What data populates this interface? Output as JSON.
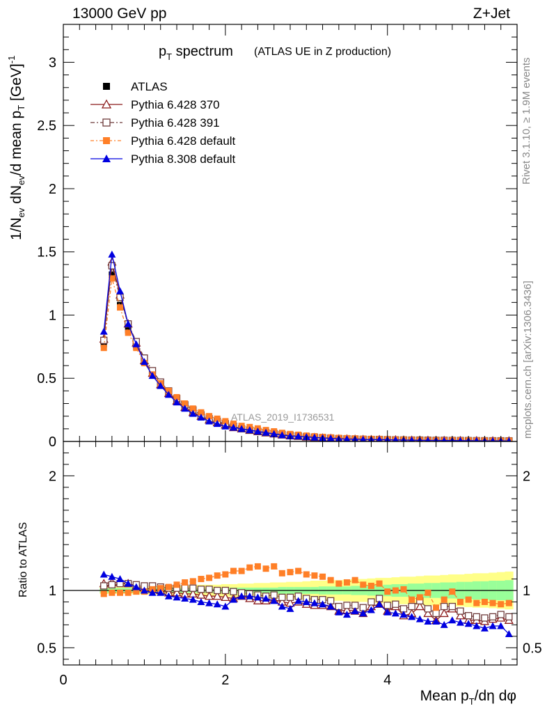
{
  "header": {
    "energy_label": "13000 GeV pp",
    "process_label": "Z+Jet",
    "title_main": "p",
    "title_sub": "T",
    "title_rest": " spectrum",
    "title_note": "(ATLAS UE in Z production)",
    "analysis_id": "ATLAS_2019_I1736531",
    "side_rivet": "Rivet 3.1.10, ≥ 1.9M events",
    "side_mcplots": "mcplots.cern.ch [arXiv:1306.3436]"
  },
  "axes": {
    "xlabel": "Mean p_T/dη dφ",
    "ylabel_main": "1/N_ev dN_ev/d mean p_T [GeV]^-1",
    "ylabel_ratio": "Ratio to ATLAS"
  },
  "colors": {
    "ATLAS": "#000000",
    "p370": "#8b1a1a",
    "p391": "#6e3b3b",
    "p6def": "#ff7f27",
    "p8def": "#0000e0",
    "band_inner": "#99ff99",
    "band_outer": "#ffff88"
  },
  "chart_data": [
    {
      "type": "scatter",
      "panel": "main",
      "xlim": [
        0,
        5.6
      ],
      "ylim": [
        0,
        3.3
      ],
      "x_ticks": [
        0,
        2,
        4
      ],
      "y_ticks": [
        0,
        0.5,
        1,
        1.5,
        2,
        2.5,
        3
      ],
      "x": [
        0.5,
        0.6,
        0.7,
        0.8,
        0.9,
        1.0,
        1.1,
        1.2,
        1.3,
        1.4,
        1.5,
        1.6,
        1.7,
        1.8,
        1.9,
        2.0,
        2.1,
        2.2,
        2.3,
        2.4,
        2.5,
        2.6,
        2.7,
        2.8,
        2.9,
        3.0,
        3.1,
        3.2,
        3.3,
        3.4,
        3.5,
        3.6,
        3.7,
        3.8,
        3.9,
        4.0,
        4.1,
        4.2,
        4.3,
        4.4,
        4.5,
        4.6,
        4.7,
        4.8,
        4.9,
        5.0,
        5.1,
        5.2,
        5.3,
        5.4,
        5.5
      ],
      "series": [
        {
          "name": "ATLAS",
          "marker": "square-filled",
          "values": [
            0.77,
            1.32,
            1.08,
            0.88,
            0.75,
            0.63,
            0.53,
            0.45,
            0.39,
            0.33,
            0.28,
            0.24,
            0.21,
            0.18,
            0.16,
            0.14,
            0.12,
            0.105,
            0.095,
            0.085,
            0.075,
            0.066,
            0.058,
            0.051,
            0.045,
            0.04,
            0.036,
            0.032,
            0.029,
            0.026,
            0.024,
            0.022,
            0.02,
            0.018,
            0.017,
            0.016,
            0.015,
            0.014,
            0.013,
            0.012,
            0.011,
            0.011,
            0.01,
            0.0095,
            0.009,
            0.0085,
            0.008,
            0.0075,
            0.007,
            0.0068,
            0.0065
          ]
        },
        {
          "name": "Pythia 6.428 370",
          "marker": "triangle-open",
          "values": [
            0.81,
            1.42,
            1.16,
            0.93,
            0.78,
            0.64,
            0.54,
            0.45,
            0.38,
            0.32,
            0.27,
            0.23,
            0.2,
            0.17,
            0.15,
            0.13,
            0.11,
            0.1,
            0.088,
            0.078,
            0.068,
            0.06,
            0.052,
            0.045,
            0.041,
            0.035,
            0.032,
            0.028,
            0.025,
            0.021,
            0.02,
            0.018,
            0.016,
            0.015,
            0.015,
            0.013,
            0.013,
            0.011,
            0.01,
            0.01,
            0.009,
            0.008,
            0.008,
            0.008,
            0.007,
            0.0063,
            0.006,
            0.0055,
            0.0053,
            0.0052,
            0.0048
          ]
        },
        {
          "name": "Pythia 6.428 391",
          "marker": "square-open",
          "values": [
            0.8,
            1.39,
            1.14,
            0.93,
            0.79,
            0.66,
            0.56,
            0.47,
            0.4,
            0.34,
            0.29,
            0.25,
            0.21,
            0.18,
            0.16,
            0.14,
            0.12,
            0.1,
            0.09,
            0.08,
            0.07,
            0.063,
            0.055,
            0.048,
            0.043,
            0.037,
            0.033,
            0.029,
            0.026,
            0.022,
            0.021,
            0.019,
            0.017,
            0.016,
            0.016,
            0.014,
            0.013,
            0.012,
            0.011,
            0.011,
            0.01,
            0.009,
            0.009,
            0.008,
            0.0075,
            0.0068,
            0.0063,
            0.0058,
            0.0055,
            0.0053,
            0.005
          ]
        },
        {
          "name": "Pythia 6.428 default",
          "marker": "square-filled",
          "values": [
            0.74,
            1.29,
            1.06,
            0.86,
            0.74,
            0.62,
            0.53,
            0.46,
            0.4,
            0.35,
            0.3,
            0.26,
            0.23,
            0.2,
            0.18,
            0.16,
            0.14,
            0.123,
            0.114,
            0.103,
            0.09,
            0.08,
            0.068,
            0.059,
            0.053,
            0.046,
            0.041,
            0.036,
            0.032,
            0.028,
            0.026,
            0.024,
            0.021,
            0.019,
            0.018,
            0.016,
            0.015,
            0.014,
            0.012,
            0.011,
            0.01,
            0.01,
            0.009,
            0.009,
            0.008,
            0.0078,
            0.0072,
            0.0067,
            0.0062,
            0.006,
            0.0058
          ]
        },
        {
          "name": "Pythia 8.308 default",
          "marker": "triangle-filled",
          "values": [
            0.87,
            1.48,
            1.19,
            0.93,
            0.77,
            0.63,
            0.52,
            0.44,
            0.37,
            0.31,
            0.26,
            0.22,
            0.19,
            0.16,
            0.14,
            0.12,
            0.11,
            0.1,
            0.09,
            0.08,
            0.07,
            0.06,
            0.05,
            0.043,
            0.041,
            0.036,
            0.032,
            0.028,
            0.025,
            0.021,
            0.019,
            0.018,
            0.016,
            0.015,
            0.015,
            0.013,
            0.012,
            0.011,
            0.01,
            0.009,
            0.008,
            0.008,
            0.007,
            0.007,
            0.0065,
            0.006,
            0.0055,
            0.005,
            0.0048,
            0.0047,
            0.004
          ]
        }
      ],
      "legend_position": "top-left"
    },
    {
      "type": "scatter",
      "panel": "ratio",
      "xlim": [
        0,
        5.6
      ],
      "ylim": [
        0.35,
        2.3
      ],
      "x_ticks": [
        0,
        2,
        4
      ],
      "y_ticks": [
        0.5,
        1,
        2
      ],
      "reference_line": 1,
      "x": [
        0.5,
        0.6,
        0.7,
        0.8,
        0.9,
        1.0,
        1.1,
        1.2,
        1.3,
        1.4,
        1.5,
        1.6,
        1.7,
        1.8,
        1.9,
        2.0,
        2.1,
        2.2,
        2.3,
        2.4,
        2.5,
        2.6,
        2.7,
        2.8,
        2.9,
        3.0,
        3.1,
        3.2,
        3.3,
        3.4,
        3.5,
        3.6,
        3.7,
        3.8,
        3.9,
        4.0,
        4.1,
        4.2,
        4.3,
        4.4,
        4.5,
        4.6,
        4.7,
        4.8,
        4.9,
        5.0,
        5.1,
        5.2,
        5.3,
        5.4,
        5.5
      ],
      "band_inner_halfwidth": [
        0.02,
        0.02,
        0.02,
        0.02,
        0.02,
        0.02,
        0.02,
        0.02,
        0.02,
        0.02,
        0.02,
        0.02,
        0.02,
        0.02,
        0.02,
        0.02,
        0.025,
        0.025,
        0.025,
        0.025,
        0.025,
        0.025,
        0.03,
        0.03,
        0.03,
        0.03,
        0.03,
        0.035,
        0.035,
        0.035,
        0.035,
        0.04,
        0.04,
        0.045,
        0.045,
        0.05,
        0.055,
        0.055,
        0.06,
        0.06,
        0.065,
        0.065,
        0.07,
        0.07,
        0.075,
        0.075,
        0.08,
        0.08,
        0.085,
        0.085,
        0.09
      ],
      "band_outer_halfwidth": [
        0.03,
        0.03,
        0.03,
        0.03,
        0.035,
        0.035,
        0.035,
        0.04,
        0.04,
        0.04,
        0.045,
        0.045,
        0.05,
        0.05,
        0.05,
        0.055,
        0.055,
        0.06,
        0.06,
        0.065,
        0.065,
        0.07,
        0.07,
        0.075,
        0.075,
        0.08,
        0.085,
        0.085,
        0.09,
        0.09,
        0.095,
        0.1,
        0.1,
        0.105,
        0.11,
        0.11,
        0.115,
        0.12,
        0.12,
        0.125,
        0.13,
        0.13,
        0.135,
        0.14,
        0.14,
        0.145,
        0.15,
        0.15,
        0.155,
        0.16,
        0.165
      ],
      "series": [
        {
          "name": "Pythia 6.428 370",
          "marker": "triangle-open",
          "values": [
            1.06,
            1.07,
            1.07,
            1.06,
            1.04,
            1.02,
            1.01,
            1.0,
            0.98,
            0.98,
            0.97,
            0.97,
            0.96,
            0.95,
            0.95,
            0.94,
            0.93,
            0.95,
            0.93,
            0.91,
            0.91,
            0.92,
            0.9,
            0.89,
            0.9,
            0.88,
            0.87,
            0.87,
            0.86,
            0.82,
            0.83,
            0.82,
            0.8,
            0.86,
            0.88,
            0.82,
            0.86,
            0.78,
            0.8,
            0.86,
            0.8,
            0.74,
            0.8,
            0.84,
            0.78,
            0.74,
            0.74,
            0.73,
            0.75,
            0.76,
            0.74
          ]
        },
        {
          "name": "Pythia 6.428 391",
          "marker": "square-open",
          "values": [
            1.04,
            1.05,
            1.06,
            1.06,
            1.05,
            1.04,
            1.04,
            1.03,
            1.02,
            1.02,
            1.02,
            1.02,
            1.01,
            1.01,
            1.0,
            1.0,
            0.99,
            0.98,
            0.97,
            0.96,
            0.95,
            0.96,
            0.94,
            0.94,
            0.95,
            0.93,
            0.92,
            0.92,
            0.91,
            0.86,
            0.87,
            0.87,
            0.85,
            0.9,
            0.93,
            0.87,
            0.88,
            0.84,
            0.86,
            0.91,
            0.84,
            0.8,
            0.86,
            0.86,
            0.82,
            0.78,
            0.77,
            0.76,
            0.77,
            0.79,
            0.77
          ]
        },
        {
          "name": "Pythia 6.428 default",
          "marker": "square-filled",
          "values": [
            0.97,
            0.98,
            0.98,
            0.98,
            0.99,
            0.99,
            1.01,
            1.02,
            1.03,
            1.05,
            1.07,
            1.08,
            1.1,
            1.11,
            1.13,
            1.14,
            1.17,
            1.17,
            1.2,
            1.21,
            1.19,
            1.21,
            1.15,
            1.16,
            1.17,
            1.14,
            1.13,
            1.12,
            1.09,
            1.06,
            1.07,
            1.09,
            1.05,
            1.04,
            1.06,
            0.99,
            1.0,
            1.01,
            0.92,
            0.94,
            0.98,
            0.85,
            0.92,
            0.99,
            0.9,
            0.92,
            0.89,
            0.9,
            0.89,
            0.88,
            0.89
          ]
        },
        {
          "name": "Pythia 8.308 default",
          "marker": "triangle-filled",
          "values": [
            1.14,
            1.12,
            1.1,
            1.06,
            1.03,
            1.0,
            0.98,
            0.98,
            0.95,
            0.94,
            0.93,
            0.92,
            0.9,
            0.89,
            0.88,
            0.86,
            0.92,
            0.95,
            0.95,
            0.94,
            0.93,
            0.91,
            0.86,
            0.84,
            0.91,
            0.9,
            0.89,
            0.88,
            0.86,
            0.81,
            0.79,
            0.82,
            0.8,
            0.83,
            0.88,
            0.81,
            0.8,
            0.79,
            0.77,
            0.75,
            0.73,
            0.73,
            0.7,
            0.74,
            0.72,
            0.71,
            0.69,
            0.67,
            0.69,
            0.69,
            0.62
          ]
        }
      ]
    }
  ]
}
